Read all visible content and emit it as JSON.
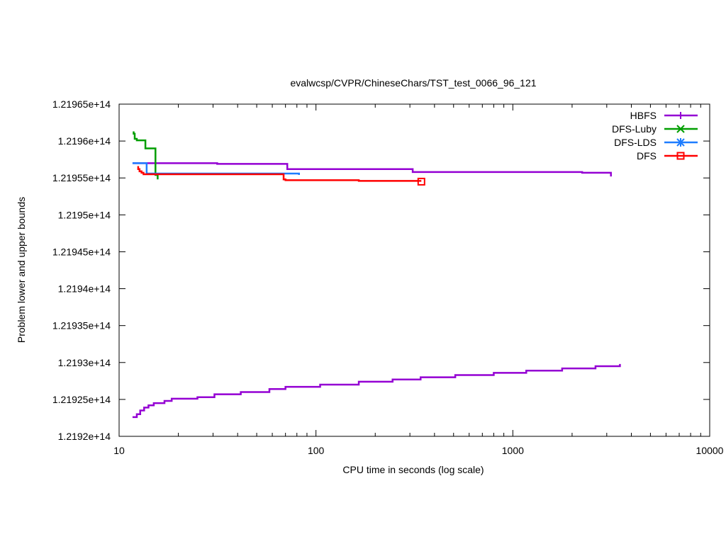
{
  "chart_data": {
    "type": "line",
    "title": "evalwcsp/CVPR/ChineseChars/TST_test_0066_96_121",
    "xlabel": "CPU time in seconds (log scale)",
    "ylabel": "Problem lower and upper bounds",
    "x_scale": "log",
    "xlim": [
      10,
      10000
    ],
    "ylim": [
      121920000000000,
      121965000000000
    ],
    "x_ticks": [
      10,
      100,
      1000,
      10000
    ],
    "x_tick_labels": [
      "10",
      "100",
      "1000",
      "10000"
    ],
    "y_ticks": [
      121920000000000,
      121925000000000,
      121930000000000,
      121935000000000,
      121940000000000,
      121945000000000,
      121950000000000,
      121955000000000,
      121960000000000,
      121965000000000
    ],
    "y_tick_labels": [
      "1.2192e+14",
      "1.21925e+14",
      "1.2193e+14",
      "1.21935e+14",
      "1.2194e+14",
      "1.21945e+14",
      "1.2195e+14",
      "1.21955e+14",
      "1.2196e+14",
      "1.21965e+14"
    ],
    "grid": false,
    "legend_position": "top-right",
    "series": [
      {
        "name": "HBFS",
        "color": "#9400d3",
        "marker": "plus",
        "segments": [
          [
            [
              11.7,
              121957000000000
            ],
            [
              31.5,
              121957000000000
            ],
            [
              31.5,
              121956900000000
            ],
            [
              71.5,
              121956900000000
            ],
            [
              71.5,
              121956200000000
            ],
            [
              310,
              121956200000000
            ],
            [
              310,
              121955800000000
            ],
            [
              2250,
              121955800000000
            ],
            [
              2250,
              121955700000000
            ],
            [
              3150,
              121955700000000
            ],
            [
              3150,
              121955200000000
            ]
          ],
          [
            [
              11.7,
              121922600000000
            ],
            [
              12.3,
              121922600000000
            ],
            [
              12.3,
              121923000000000
            ],
            [
              12.8,
              121923000000000
            ],
            [
              12.8,
              121923500000000
            ],
            [
              13.4,
              121923500000000
            ],
            [
              13.4,
              121923900000000
            ],
            [
              14.1,
              121923900000000
            ],
            [
              14.1,
              121924200000000
            ],
            [
              15.0,
              121924200000000
            ],
            [
              15.0,
              121924500000000
            ],
            [
              17.0,
              121924500000000
            ],
            [
              17.0,
              121924800000000
            ],
            [
              18.5,
              121924800000000
            ],
            [
              18.5,
              121925100000000
            ],
            [
              25.0,
              121925100000000
            ],
            [
              25.0,
              121925300000000
            ],
            [
              30.5,
              121925300000000
            ],
            [
              30.5,
              121925700000000
            ],
            [
              41.5,
              121925700000000
            ],
            [
              41.5,
              121926000000000
            ],
            [
              58.0,
              121926000000000
            ],
            [
              58.0,
              121926400000000
            ],
            [
              70.0,
              121926400000000
            ],
            [
              70.0,
              121926700000000
            ],
            [
              105,
              121926700000000
            ],
            [
              105,
              121927000000000
            ],
            [
              165,
              121927000000000
            ],
            [
              165,
              121927400000000
            ],
            [
              245,
              121927400000000
            ],
            [
              245,
              121927700000000
            ],
            [
              340,
              121927700000000
            ],
            [
              340,
              121928000000000
            ],
            [
              510,
              121928000000000
            ],
            [
              510,
              121928300000000
            ],
            [
              800,
              121928300000000
            ],
            [
              800,
              121928600000000
            ],
            [
              1170,
              121928600000000
            ],
            [
              1170,
              121928900000000
            ],
            [
              1780,
              121928900000000
            ],
            [
              1780,
              121929200000000
            ],
            [
              2630,
              121929200000000
            ],
            [
              2630,
              121929500000000
            ],
            [
              3500,
              121929500000000
            ],
            [
              3500,
              121929800000000
            ]
          ]
        ]
      },
      {
        "name": "DFS-Luby",
        "color": "#009e00",
        "marker": "cross",
        "segments": [
          [
            [
              11.85,
              121961300000000
            ],
            [
              11.85,
              121961000000000
            ],
            [
              12.0,
              121961000000000
            ],
            [
              12.0,
              121960300000000
            ],
            [
              12.3,
              121960300000000
            ],
            [
              12.3,
              121960100000000
            ],
            [
              13.6,
              121960100000000
            ],
            [
              13.6,
              121959000000000
            ],
            [
              15.3,
              121959000000000
            ],
            [
              15.3,
              121955400000000
            ],
            [
              15.7,
              121955400000000
            ],
            [
              15.7,
              121954800000000
            ]
          ]
        ]
      },
      {
        "name": "DFS-LDS",
        "color": "#1e7dff",
        "marker": "star",
        "segments": [
          [
            [
              11.7,
              121957000000000
            ],
            [
              13.8,
              121957000000000
            ],
            [
              13.8,
              121955600000000
            ],
            [
              82,
              121955600000000
            ],
            [
              82,
              121955400000000
            ]
          ]
        ]
      },
      {
        "name": "DFS",
        "color": "#ff0000",
        "marker": "box",
        "segments": [
          [
            [
              12.5,
              121956600000000
            ],
            [
              12.5,
              121956200000000
            ],
            [
              12.7,
              121956200000000
            ],
            [
              12.7,
              121955900000000
            ],
            [
              13.0,
              121955900000000
            ],
            [
              13.0,
              121955700000000
            ],
            [
              13.3,
              121955700000000
            ],
            [
              13.3,
              121955500000000
            ],
            [
              68.5,
              121955500000000
            ],
            [
              68.5,
              121954800000000
            ],
            [
              70,
              121954800000000
            ],
            [
              70,
              121954700000000
            ],
            [
              165,
              121954700000000
            ],
            [
              165,
              121954600000000
            ],
            [
              343,
              121954600000000
            ]
          ]
        ],
        "end_marker": [
          343,
          121954500000000
        ]
      }
    ]
  }
}
